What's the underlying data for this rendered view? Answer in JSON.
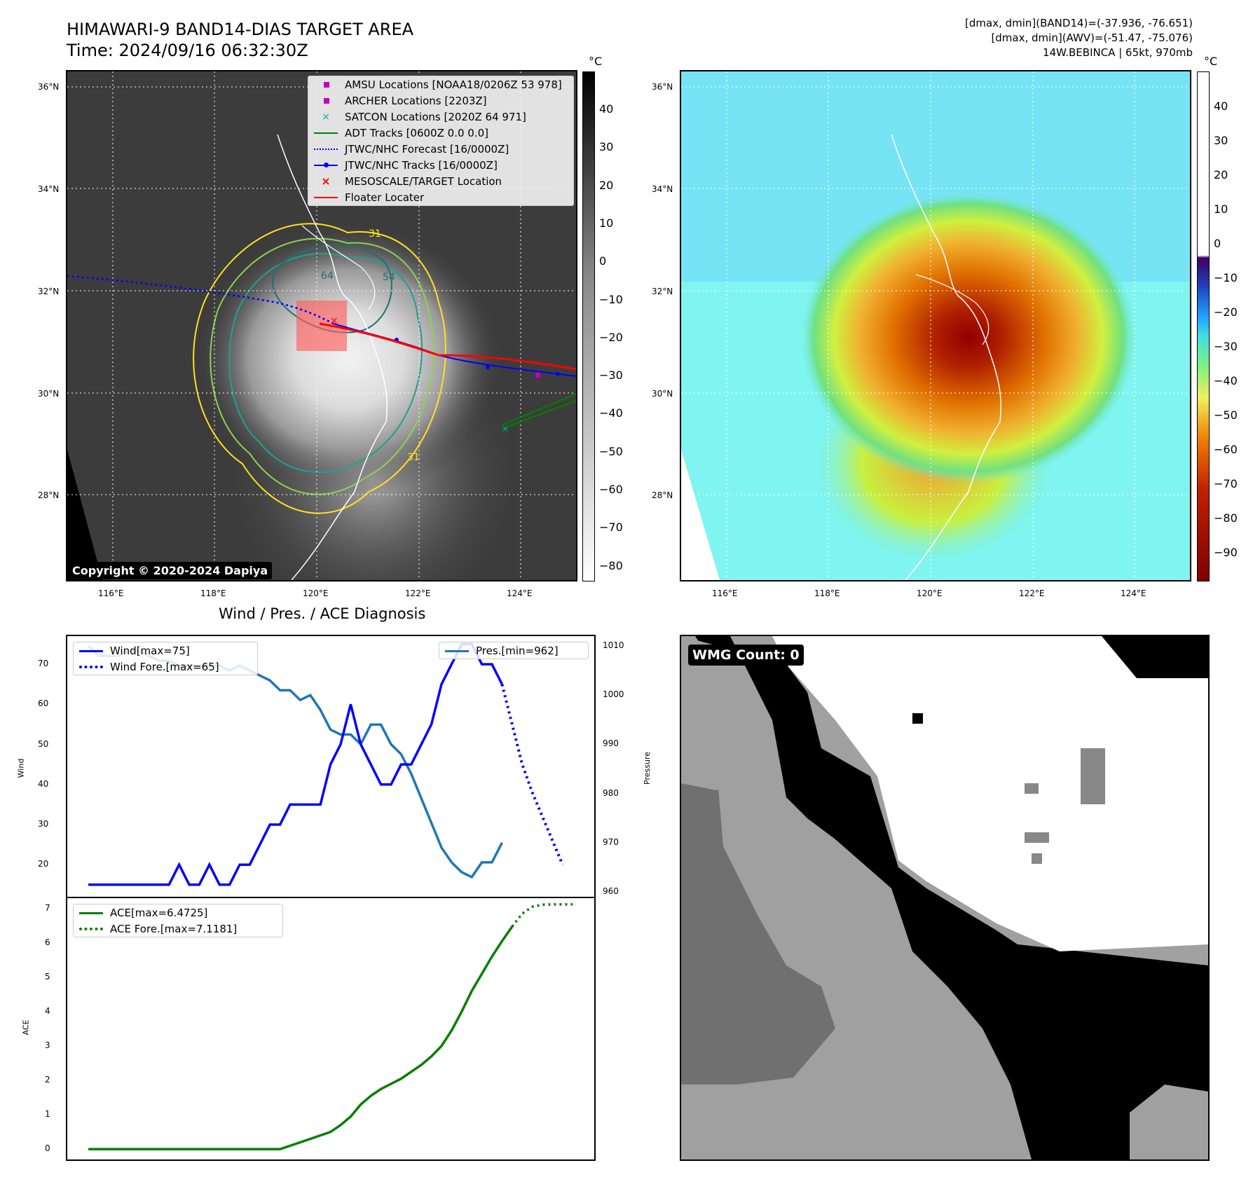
{
  "header": {
    "title_line1": "HIMAWARI-9 BAND14-DIAS TARGET AREA",
    "title_line2": "Time: 2024/09/16 06:32:30Z",
    "right_line1": "[dmax, dmin](BAND14)=(-37.936, -76.651)",
    "right_line2": "[dmax, dmin](AWV)=(-51.47, -75.076)",
    "right_line3": "14W.BEBINCA | 65kt, 970mb"
  },
  "map": {
    "lat_labels": [
      "36°N",
      "34°N",
      "32°N",
      "30°N",
      "28°N"
    ],
    "lon_labels": [
      "116°E",
      "118°E",
      "120°E",
      "122°E",
      "124°E"
    ],
    "copyright": "Copyright © 2020-2024 Dapiya",
    "contour_labels": [
      "31",
      "64",
      "54",
      "31"
    ],
    "legend": [
      {
        "label": "AMSU Locations [NOAA18/0206Z 53 978]",
        "color": "#c000c0"
      },
      {
        "label": "ARCHER Locations [2203Z]",
        "color": "#c000c0"
      },
      {
        "label": "SATCON Locations [2020Z 64 971]",
        "color": "#00b0b0"
      },
      {
        "label": "ADT Tracks [0600Z 0.0 0.0]",
        "color": "#008000"
      },
      {
        "label": "JTWC/NHC Forecast [16/0000Z]",
        "color": "#0000ff"
      },
      {
        "label": "JTWC/NHC Tracks [16/0000Z]",
        "color": "#0000ff"
      },
      {
        "label": "MESOSCALE/TARGET Location",
        "color": "#ff0000"
      },
      {
        "label": "Floater Locater",
        "color": "#ff0000"
      }
    ]
  },
  "colorbar1": {
    "unit": "°C",
    "ticks": [
      "40",
      "30",
      "20",
      "10",
      "0",
      "−10",
      "−20",
      "−30",
      "−40",
      "−50",
      "−60",
      "−70",
      "−80"
    ]
  },
  "colorbar2": {
    "unit": "°C",
    "ticks": [
      "40",
      "30",
      "20",
      "10",
      "0",
      "−10",
      "−20",
      "−30",
      "−40",
      "−50",
      "−60",
      "−70",
      "−80",
      "−90"
    ]
  },
  "wmg": {
    "label": "WMG Count: 0"
  },
  "colors": {
    "wind": "#0000ff",
    "pres": "#1f77b4",
    "ace": "#008000"
  },
  "chart_data": [
    {
      "type": "line",
      "title": "Wind / Pres. / ACE Diagnosis",
      "ylabel": "Wind",
      "y2label": "Pressure",
      "ylim": [
        12,
        77
      ],
      "y2lim": [
        959,
        1012
      ],
      "yticks": [
        "70",
        "60",
        "50",
        "40",
        "30",
        "20"
      ],
      "y2ticks": [
        "1010",
        "1000",
        "990",
        "980",
        "970",
        "960"
      ],
      "series": [
        {
          "name": "Wind[max=75]",
          "style": "solid",
          "axis": "left",
          "values": [
            15,
            15,
            15,
            15,
            15,
            15,
            15,
            15,
            15,
            20,
            15,
            15,
            20,
            15,
            15,
            20,
            20,
            25,
            30,
            30,
            35,
            35,
            35,
            35,
            45,
            50,
            60,
            50,
            45,
            40,
            40,
            45,
            45,
            50,
            55,
            65,
            70,
            75,
            75,
            70,
            70,
            65
          ]
        },
        {
          "name": "Wind Fore.[max=65]",
          "style": "dotted",
          "axis": "left",
          "start_index": 41,
          "values": [
            65,
            55,
            45,
            38,
            32,
            26,
            20
          ]
        },
        {
          "name": "Pres.[min=962]",
          "style": "solid",
          "axis": "right",
          "values": [
            1010,
            1008,
            1008,
            1008,
            1009,
            1009,
            1008,
            1007,
            1007,
            1006,
            1006,
            1006,
            1006,
            1006,
            1005,
            1006,
            1005,
            1004,
            1003,
            1001,
            1001,
            999,
            1000,
            997,
            993,
            992,
            992,
            990,
            994,
            994,
            990,
            988,
            984,
            979,
            974,
            969,
            966,
            964,
            963,
            966,
            966,
            970
          ]
        }
      ]
    },
    {
      "type": "line",
      "ylabel": "ACE",
      "ylim": [
        -0.3,
        7.3
      ],
      "yticks": [
        "7",
        "6",
        "5",
        "4",
        "3",
        "2",
        "1",
        "0"
      ],
      "series": [
        {
          "name": "ACE[max=6.4725]",
          "style": "solid",
          "values": [
            0,
            0,
            0,
            0,
            0,
            0,
            0,
            0,
            0,
            0,
            0,
            0,
            0,
            0,
            0,
            0,
            0,
            0,
            0,
            0,
            0.1,
            0.2,
            0.3,
            0.4,
            0.5,
            0.7,
            0.95,
            1.3,
            1.55,
            1.75,
            1.9,
            2.05,
            2.25,
            2.45,
            2.7,
            3.0,
            3.45,
            4.0,
            4.6,
            5.1,
            5.6,
            6.05,
            6.4725
          ]
        },
        {
          "name": "ACE Fore.[max=7.1181]",
          "style": "dotted",
          "start_index": 42,
          "values": [
            6.4725,
            6.85,
            7.05,
            7.11,
            7.1181,
            7.1181,
            7.1181
          ]
        }
      ]
    }
  ]
}
